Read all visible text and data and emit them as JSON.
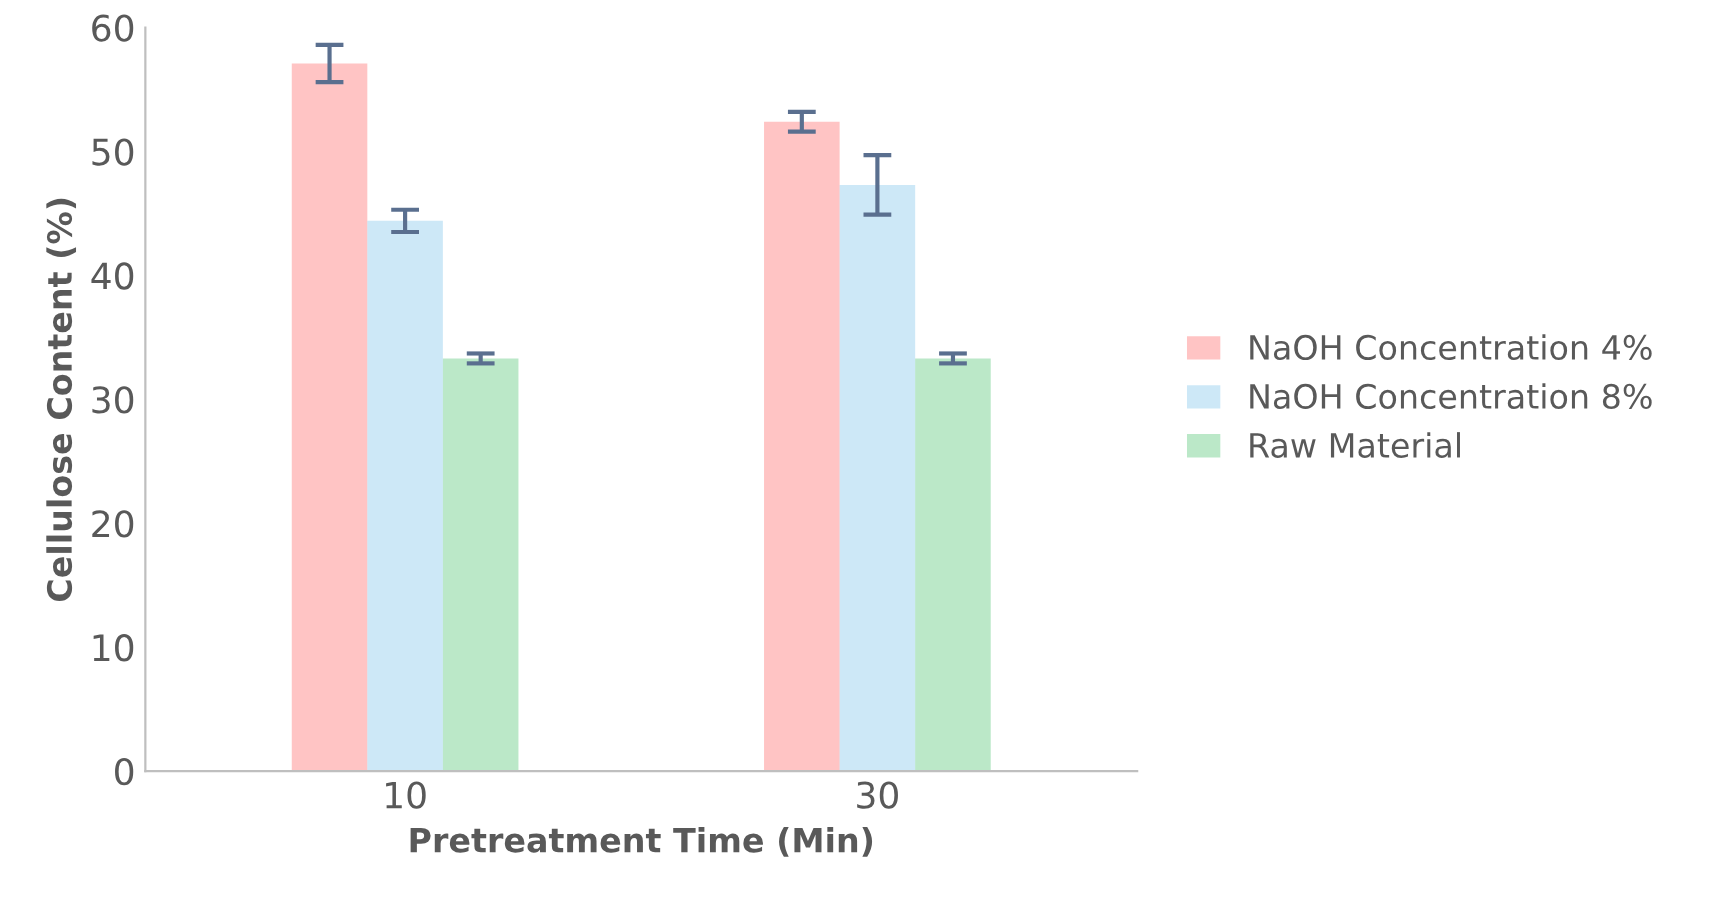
{
  "chart_data": {
    "type": "bar",
    "xlabel": "Pretreatment Time (Min)",
    "ylabel": "Cellulose Content (%)",
    "categories": [
      "10",
      "30"
    ],
    "series": [
      {
        "name": "NaOH Concentration 4%",
        "color": "#ff3b3b",
        "values": [
          57.1,
          52.4
        ],
        "errors": [
          1.5,
          0.8
        ]
      },
      {
        "name": "NaOH Concentration 8%",
        "color": "#5ab4e5",
        "values": [
          44.4,
          47.3
        ],
        "errors": [
          0.9,
          2.4
        ]
      },
      {
        "name": "Raw Material",
        "color": "#1db34a",
        "values": [
          33.3,
          33.3
        ],
        "errors": [
          0.4,
          0.4
        ]
      }
    ],
    "ylim": [
      0,
      60
    ],
    "yticks": [
      0,
      10,
      20,
      30,
      40,
      50,
      60
    ],
    "grid": false,
    "legend": "right"
  }
}
